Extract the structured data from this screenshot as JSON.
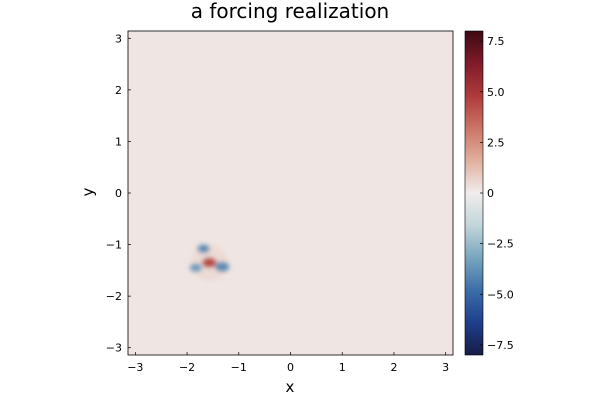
{
  "chart_data": {
    "type": "heatmap",
    "title": "a forcing realization",
    "xlabel": "x",
    "ylabel": "y",
    "xlim": [
      -3.14159,
      3.14159
    ],
    "ylim": [
      -3.14159,
      3.14159
    ],
    "x_ticks": [
      -3,
      -2,
      -1,
      0,
      1,
      2,
      3
    ],
    "y_ticks": [
      -3,
      -2,
      -1,
      0,
      1,
      2,
      3
    ],
    "x_tick_labels": [
      "−3",
      "−2",
      "−1",
      "0",
      "1",
      "2",
      "3"
    ],
    "y_tick_labels": [
      "−3",
      "−2",
      "−1",
      "0",
      "1",
      "2",
      "3"
    ],
    "background_value": 0.2,
    "features": [
      {
        "label": "center (positive)",
        "x": -1.57,
        "y": -1.35,
        "value": 4.5
      },
      {
        "label": "upper negative lobe",
        "x": -1.68,
        "y": -1.08,
        "value": -4.0
      },
      {
        "label": "left negative lobe",
        "x": -1.83,
        "y": -1.45,
        "value": -3.5
      },
      {
        "label": "right negative lobe",
        "x": -1.32,
        "y": -1.43,
        "value": -4.0
      },
      {
        "label": "outer positive ring",
        "x": -1.57,
        "y": -1.35,
        "value": 1.0
      }
    ],
    "colorbar": {
      "colormap": "balance",
      "min": -8.0,
      "max": 8.0,
      "ticks": [
        7.5,
        5.0,
        2.5,
        0,
        -2.5,
        -5.0,
        -7.5
      ],
      "tick_labels": [
        "7.5",
        "5.0",
        "2.5",
        "0",
        "−2.5",
        "−5.0",
        "−7.5"
      ],
      "colors_low_to_high": [
        "#151d44",
        "#1f3f8c",
        "#3b6ea8",
        "#78a6bd",
        "#c1d6da",
        "#f1ecec",
        "#e0b09e",
        "#cb7565",
        "#ad3b3b",
        "#801b2a",
        "#3c0912"
      ]
    }
  }
}
